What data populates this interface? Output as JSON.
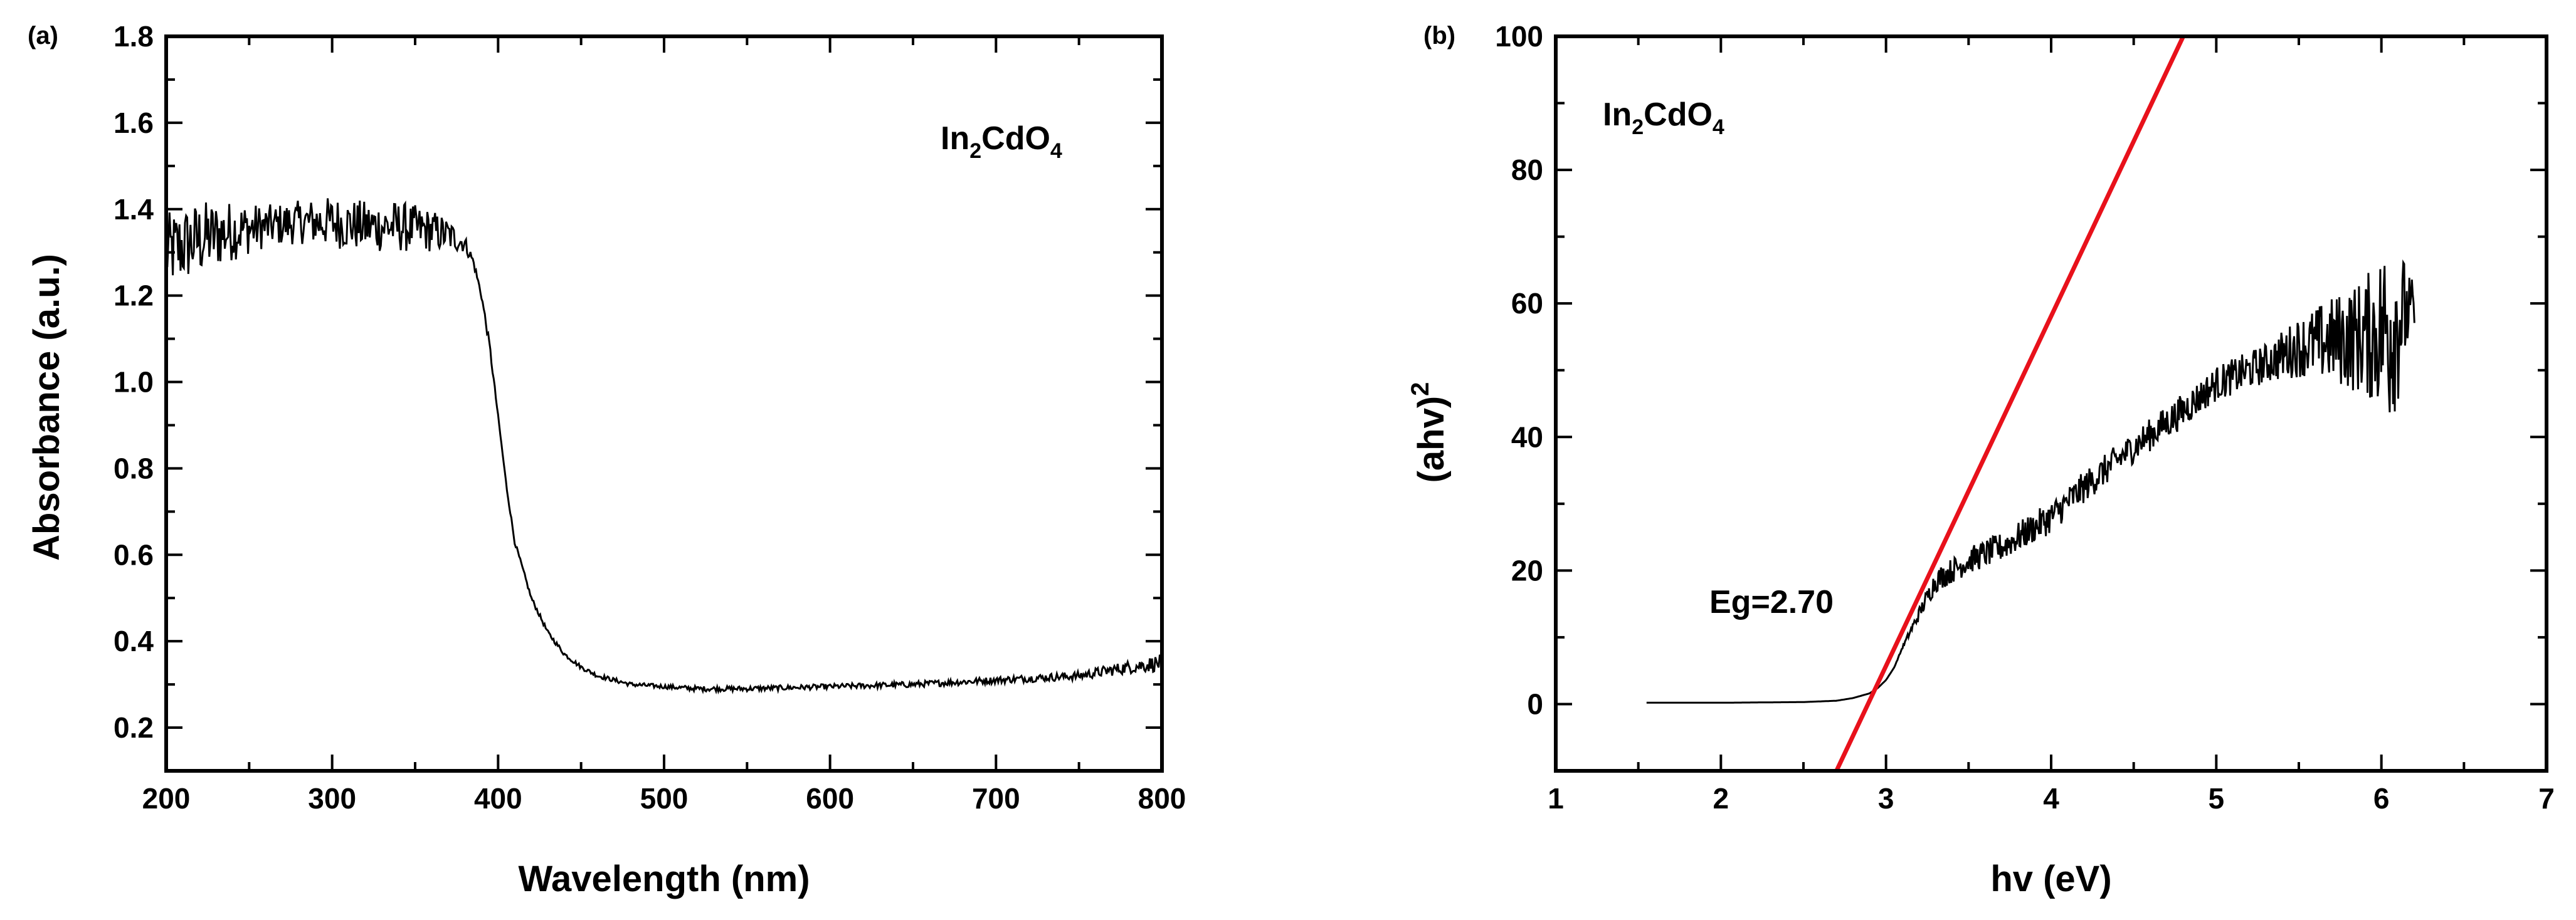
{
  "chart_data": [
    {
      "panel_label": "(a)",
      "type": "line",
      "xlabel": "Wavelength (nm)",
      "ylabel": "Absorbance (a.u.)",
      "xlim": [
        200,
        800
      ],
      "ylim": [
        0.1,
        1.8
      ],
      "xticks": [
        200,
        300,
        400,
        500,
        600,
        700,
        800
      ],
      "xtick_labels": [
        "200",
        "300",
        "400",
        "500",
        "600",
        "700",
        "800"
      ],
      "yticks": [
        0.2,
        0.4,
        0.6,
        0.8,
        1.0,
        1.2,
        1.4,
        1.6,
        1.8
      ],
      "ytick_labels": [
        "0.2",
        "0.4",
        "0.6",
        "0.8",
        "1.0",
        "1.2",
        "1.4",
        "1.6",
        "1.8"
      ],
      "annotation": {
        "base": "In",
        "sub1": "2",
        "mid": "CdO",
        "sub2": "4"
      },
      "grid": false,
      "line_color": "#000000",
      "series": [
        {
          "x": [
            200,
            220,
            240,
            260,
            280,
            300,
            320,
            340,
            360,
            370,
            380,
            385,
            390,
            395,
            400,
            405,
            410,
            420,
            430,
            440,
            450,
            460,
            470,
            480,
            500,
            520,
            550,
            600,
            650,
            700,
            750,
            780,
            800
          ],
          "y": [
            1.3,
            1.33,
            1.35,
            1.36,
            1.37,
            1.37,
            1.36,
            1.36,
            1.35,
            1.34,
            1.32,
            1.28,
            1.2,
            1.08,
            0.92,
            0.76,
            0.63,
            0.5,
            0.42,
            0.37,
            0.34,
            0.32,
            0.31,
            0.3,
            0.295,
            0.29,
            0.29,
            0.295,
            0.3,
            0.31,
            0.32,
            0.34,
            0.35
          ],
          "noise": [
            0.09,
            0.09,
            0.07,
            0.05,
            0.05,
            0.06,
            0.06,
            0.06,
            0.05,
            0.04,
            0.02,
            0.01,
            0.01,
            0.01,
            0.005,
            0.005,
            0.005,
            0.005,
            0.005,
            0.005,
            0.005,
            0.005,
            0.005,
            0.005,
            0.005,
            0.006,
            0.006,
            0.006,
            0.007,
            0.008,
            0.01,
            0.015,
            0.02
          ]
        }
      ]
    },
    {
      "panel_label": "(b)",
      "type": "line",
      "xlabel": "hv (eV)",
      "ylabel": "(ahv)",
      "ylabel_superscript": "2",
      "xlim": [
        1,
        7
      ],
      "ylim": [
        -10,
        100
      ],
      "xticks": [
        1,
        2,
        3,
        4,
        5,
        6,
        7
      ],
      "xtick_labels": [
        "1",
        "2",
        "3",
        "4",
        "5",
        "6",
        "7"
      ],
      "yticks": [
        0,
        20,
        40,
        60,
        80,
        100
      ],
      "ytick_labels": [
        "0",
        "20",
        "40",
        "60",
        "80",
        "100"
      ],
      "annotation": {
        "base": "In",
        "sub1": "2",
        "mid": "CdO",
        "sub2": "4"
      },
      "eg_label": "Eg=2.70",
      "grid": false,
      "line_color": "#000000",
      "fit_line": {
        "x": [
          2.7,
          4.8
        ],
        "y": [
          -10,
          100
        ],
        "color": "#e8111b"
      },
      "series": [
        {
          "x": [
            1.55,
            2.0,
            2.5,
            2.7,
            2.8,
            2.9,
            2.95,
            3.0,
            3.05,
            3.1,
            3.2,
            3.3,
            3.5,
            3.7,
            4.0,
            4.2,
            4.5,
            4.8,
            5.0,
            5.3,
            5.5,
            5.7,
            5.9,
            6.0,
            6.05,
            6.1,
            6.15,
            6.2
          ],
          "y": [
            0.2,
            0.2,
            0.3,
            0.5,
            0.9,
            1.6,
            2.4,
            3.6,
            5.5,
            8.5,
            13.5,
            18.5,
            21.5,
            23.5,
            28.0,
            32.5,
            38.5,
            44.0,
            48.0,
            51.0,
            53.5,
            54.5,
            55.0,
            56.0,
            57.0,
            58.0,
            58.5,
            59.0
          ],
          "noise": [
            0,
            0,
            0,
            0,
            0,
            0,
            0,
            0,
            0,
            0.2,
            1.0,
            1.8,
            2.0,
            2.2,
            2.4,
            2.4,
            2.4,
            2.6,
            2.6,
            3.0,
            4.5,
            6.5,
            9.0,
            12.0,
            16.0,
            13.0,
            7.0,
            4.0
          ]
        }
      ]
    }
  ]
}
